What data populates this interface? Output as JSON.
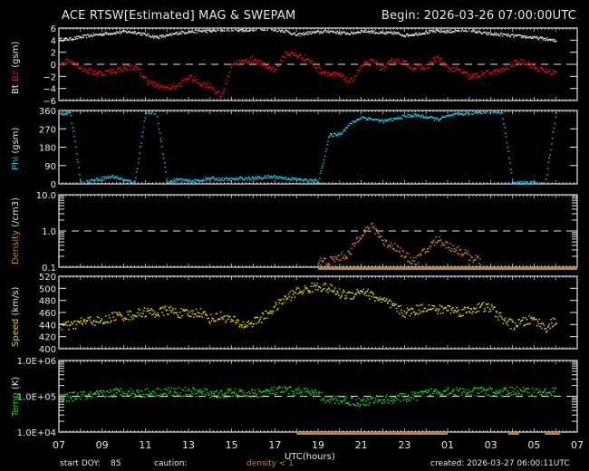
{
  "header": {
    "title": "ACE RTSW[Estimated] MAG & SWEPAM",
    "begin": "Begin: 2026-03-26 07:00:00UTC"
  },
  "footer": {
    "start_doy_label": "start DOY:",
    "start_doy_value": "85",
    "caution_label": "caution:",
    "caution_value": "density < 1",
    "created": "created: 2026-03-27 06:00:11UTC",
    "xlabel": "UTC(hours)"
  },
  "colors": {
    "background": "#000000",
    "axis": "#e6e6e6",
    "bt": "#d9d9d9",
    "bz": "#e01010",
    "phi": "#20c0e0",
    "density": "#d08020",
    "speed": "#e0d020",
    "temp": "#20d020"
  },
  "chart_data": [
    {
      "type": "scatter",
      "panel": "magnetic-field",
      "ylabel_parts": [
        "Bt",
        "Bz",
        "(gsm)"
      ],
      "ylim": [
        -6,
        6
      ],
      "yticks": [
        -6,
        -4,
        -2,
        0,
        2,
        4,
        6
      ],
      "ref_line": 0,
      "x_hours": [
        0,
        24
      ],
      "series": [
        {
          "name": "Bt",
          "color": "#d9d9d9",
          "x": [
            0,
            0.5,
            1,
            1.5,
            2,
            2.5,
            3,
            3.5,
            4,
            4.5,
            5,
            5.5,
            6,
            6.5,
            7,
            7.5,
            8,
            8.5,
            9,
            9.5,
            10,
            10.5,
            11,
            11.5,
            12,
            12.5,
            13,
            13.5,
            14,
            14.5,
            15,
            15.5,
            16,
            16.5,
            17,
            17.5,
            18,
            18.5,
            19,
            19.5,
            20,
            20.5,
            21,
            21.5,
            22,
            22.5,
            23
          ],
          "values": [
            4.2,
            4.3,
            4.6,
            4.9,
            5.1,
            5.3,
            5.5,
            5.4,
            5.0,
            4.6,
            4.8,
            5.3,
            5.5,
            5.6,
            5.6,
            5.8,
            5.9,
            5.7,
            5.9,
            6.0,
            5.8,
            5.6,
            4.9,
            5.3,
            5.4,
            5.6,
            5.3,
            5.2,
            5.6,
            5.5,
            5.2,
            5.3,
            4.9,
            5.1,
            5.4,
            5.6,
            5.5,
            5.7,
            5.8,
            5.3,
            5.1,
            5.0,
            4.8,
            4.7,
            4.5,
            4.3,
            3.9
          ]
        },
        {
          "name": "Bz",
          "color": "#e01010",
          "x": [
            0,
            0.5,
            1,
            1.5,
            2,
            2.5,
            3,
            3.5,
            4,
            4.5,
            5,
            5.5,
            6,
            6.5,
            7,
            7.5,
            8,
            8.5,
            9,
            9.5,
            10,
            10.5,
            11,
            11.5,
            12,
            12.5,
            13,
            13.5,
            14,
            14.5,
            15,
            15.5,
            16,
            16.5,
            17,
            17.5,
            18,
            18.5,
            19,
            19.5,
            20,
            20.5,
            21,
            21.5,
            22,
            22.5,
            23
          ],
          "values": [
            0.2,
            0.8,
            -0.5,
            -1.2,
            -1.4,
            -1.0,
            -0.6,
            -0.2,
            -2.5,
            -3.5,
            -3.8,
            -3.5,
            -2.0,
            -3.0,
            -3.5,
            -5.3,
            0.3,
            0.5,
            1.0,
            -0.2,
            -0.8,
            2.0,
            1.5,
            1.0,
            -0.8,
            -1.5,
            -1.8,
            -2.8,
            -0.2,
            0.5,
            -0.6,
            0.8,
            0.3,
            -0.5,
            -0.3,
            1.2,
            -0.6,
            -0.9,
            -2.0,
            -1.6,
            -1.2,
            -1.0,
            0.2,
            0.6,
            -0.5,
            -1.0,
            -1.3
          ]
        }
      ]
    },
    {
      "type": "scatter",
      "panel": "phi",
      "ylabel_parts": [
        "Phi",
        "(gsm)"
      ],
      "ylim": [
        0,
        360
      ],
      "yticks": [
        0,
        90,
        180,
        270,
        360
      ],
      "x_hours": [
        0,
        24
      ],
      "series": [
        {
          "name": "Phi",
          "color": "#20c0e0",
          "x": [
            0,
            0.5,
            1,
            1.5,
            2,
            2.5,
            3,
            3.5,
            4,
            4.5,
            5,
            5.5,
            6,
            6.5,
            7,
            7.5,
            8,
            8.5,
            9,
            9.5,
            10,
            10.5,
            11,
            11.5,
            12,
            12.5,
            13,
            13.5,
            14,
            14.5,
            15,
            15.5,
            16,
            16.5,
            17,
            17.5,
            18,
            18.5,
            19,
            19.5,
            20,
            20.5,
            21,
            21.5,
            22,
            22.5,
            23
          ],
          "values": [
            345,
            355,
            5,
            20,
            30,
            40,
            20,
            10,
            355,
            350,
            10,
            25,
            15,
            20,
            30,
            25,
            25,
            30,
            30,
            35,
            38,
            30,
            25,
            20,
            15,
            240,
            250,
            300,
            330,
            320,
            310,
            320,
            335,
            340,
            330,
            320,
            335,
            345,
            350,
            355,
            358,
            355,
            5,
            10,
            5,
            0,
            355
          ]
        }
      ]
    },
    {
      "type": "scatter",
      "panel": "density",
      "ylabel_parts": [
        "Density",
        "(/cm3)"
      ],
      "yscale": "log",
      "ylim": [
        0.1,
        10.0
      ],
      "yticks": [
        "0.1",
        "1.0",
        "10.0"
      ],
      "ref_line": 1.0,
      "x_hours": [
        0,
        24
      ],
      "series": [
        {
          "name": "Density",
          "color": "#d08020",
          "x": [
            12,
            12.5,
            13,
            13.5,
            14,
            14.5,
            15,
            15.5,
            16,
            16.5,
            17,
            17.5,
            18,
            18.5,
            19,
            19.5
          ],
          "values": [
            0.15,
            0.15,
            0.2,
            0.25,
            0.9,
            1.3,
            0.5,
            0.4,
            0.2,
            0.15,
            0.3,
            0.6,
            0.4,
            0.3,
            0.2,
            0.15
          ]
        }
      ]
    },
    {
      "type": "scatter",
      "panel": "speed",
      "ylabel_parts": [
        "Speed",
        "(km/s)"
      ],
      "ylim": [
        400,
        520
      ],
      "yticks": [
        400,
        420,
        440,
        460,
        480,
        500,
        520
      ],
      "x_hours": [
        0,
        24
      ],
      "series": [
        {
          "name": "Speed",
          "color": "#e0d020",
          "x": [
            0,
            0.5,
            1,
            1.5,
            2,
            2.5,
            3,
            3.5,
            4,
            4.5,
            5,
            5.5,
            6,
            6.5,
            7,
            7.5,
            8,
            8.5,
            9,
            9.5,
            10,
            10.5,
            11,
            11.5,
            12,
            12.5,
            13,
            13.5,
            14,
            14.5,
            15,
            15.5,
            16,
            16.5,
            17,
            17.5,
            18,
            18.5,
            19,
            19.5,
            20,
            20.5,
            21,
            21.5,
            22,
            22.5,
            23
          ],
          "values": [
            440,
            438,
            445,
            448,
            445,
            455,
            455,
            458,
            462,
            460,
            465,
            460,
            458,
            462,
            450,
            455,
            448,
            440,
            445,
            455,
            470,
            485,
            495,
            500,
            505,
            500,
            492,
            490,
            498,
            488,
            480,
            470,
            460,
            465,
            470,
            465,
            468,
            462,
            465,
            470,
            468,
            450,
            440,
            445,
            450,
            435,
            448
          ]
        }
      ]
    },
    {
      "type": "scatter",
      "panel": "temperature",
      "ylabel_parts": [
        "Temp",
        "(K)"
      ],
      "yscale": "log",
      "ylim": [
        10000,
        1000000
      ],
      "yticks": [
        "1.0E+04",
        "1.0E+05",
        "1.0E+06"
      ],
      "ref_line": 100000,
      "x_hours": [
        0,
        24
      ],
      "series": [
        {
          "name": "Temp",
          "color": "#20d020",
          "x": [
            0,
            0.5,
            1,
            1.5,
            2,
            2.5,
            3,
            3.5,
            4,
            4.5,
            5,
            5.5,
            6,
            6.5,
            7,
            7.5,
            8,
            8.5,
            9,
            9.5,
            10,
            10.5,
            11,
            11.5,
            12,
            12.5,
            13,
            13.5,
            14,
            14.5,
            15,
            15.5,
            16,
            16.5,
            17,
            17.5,
            18,
            18.5,
            19,
            19.5,
            20,
            20.5,
            21,
            21.5,
            22,
            22.5,
            23
          ],
          "values": [
            90000,
            100000,
            110000,
            105000,
            120000,
            130000,
            140000,
            125000,
            130000,
            135000,
            140000,
            135000,
            140000,
            130000,
            125000,
            120000,
            130000,
            120000,
            125000,
            135000,
            145000,
            150000,
            140000,
            135000,
            110000,
            80000,
            85000,
            75000,
            70000,
            80000,
            85000,
            90000,
            95000,
            105000,
            125000,
            140000,
            150000,
            135000,
            130000,
            145000,
            140000,
            130000,
            150000,
            140000,
            135000,
            130000,
            140000
          ]
        }
      ]
    }
  ],
  "x_axis": {
    "ticks": [
      "07",
      "09",
      "11",
      "13",
      "15",
      "17",
      "19",
      "21",
      "23",
      "01",
      "03",
      "05",
      "07"
    ],
    "label": "UTC(hours)"
  }
}
